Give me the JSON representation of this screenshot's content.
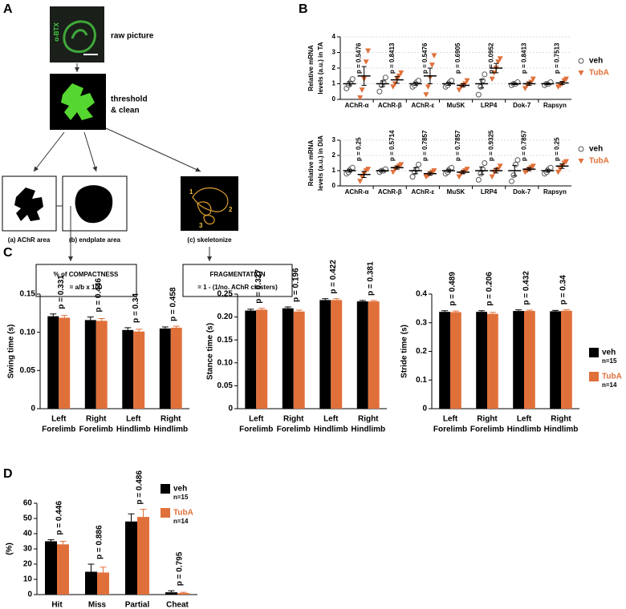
{
  "panel_labels": [
    "A",
    "B",
    "C",
    "D"
  ],
  "diagram": {
    "stain_label": "α-BTX",
    "raw_label": "raw picture",
    "threshold_label": [
      "threshold",
      "& clean"
    ],
    "areas": [
      "(a) AChR area",
      "(b) endplate area",
      "(c) skeletonize"
    ],
    "cluster_numbers": [
      "1",
      "2",
      "3"
    ],
    "compactness": [
      "% of COMPACTNESS",
      "= a/b x 100"
    ],
    "fragmentation": [
      "FRAGMENTATION",
      "= 1 - (1/no. AChR clusters)"
    ]
  },
  "chart_data": [
    {
      "type": "dotplot",
      "ylabel": [
        "Relative mRNA",
        "levels (a.u.) in TA"
      ],
      "categories": [
        "AChR-α",
        "AChR-β",
        "AChR-ε",
        "MuSK",
        "LRP4",
        "Dok-7",
        "Rapsyn"
      ],
      "ylim": [
        0,
        4
      ],
      "yticks": [
        0,
        1,
        2,
        3,
        4
      ],
      "grid": true,
      "legend": "right",
      "annotations": [
        "p = 0.5476",
        "p = 0.8413",
        "p = 0.5476",
        "p = 0.6905",
        "p = 0.0952",
        "p = 0.8413",
        "p = 0.7513"
      ],
      "series": [
        {
          "name": "veh",
          "color": "#555555",
          "marker": "circle",
          "values": [
            1.0,
            1.0,
            1.0,
            1.0,
            1.0,
            1.0,
            1.0
          ],
          "errors": [
            0.13,
            0.18,
            0.1,
            0.1,
            0.27,
            0.05,
            0.05
          ],
          "points": [
            [
              0.7,
              0.9,
              1.1,
              1.3
            ],
            [
              0.5,
              0.9,
              1.1,
              1.4
            ],
            [
              0.8,
              0.9,
              1.1,
              1.2
            ],
            [
              0.8,
              0.9,
              1.1,
              1.2
            ],
            [
              0.3,
              0.8,
              1.2,
              1.6
            ],
            [
              0.9,
              1.0,
              1.0,
              1.1
            ],
            [
              0.9,
              1.0,
              1.0,
              1.1
            ]
          ]
        },
        {
          "name": "TubA",
          "color": "#e0703a",
          "marker": "triangle-down",
          "values": [
            1.5,
            1.25,
            1.5,
            0.9,
            2.0,
            1.0,
            1.05
          ],
          "errors": [
            0.6,
            0.22,
            0.5,
            0.1,
            0.3,
            0.1,
            0.1
          ],
          "points": [
            [
              0.1,
              0.6,
              1.3,
              2.4,
              3.1
            ],
            [
              0.8,
              1.0,
              1.3,
              1.5,
              1.7
            ],
            [
              0.3,
              0.8,
              1.4,
              2.2,
              2.8
            ],
            [
              0.6,
              0.8,
              0.9,
              1.0,
              1.2
            ],
            [
              1.3,
              1.7,
              2.0,
              2.4,
              2.6
            ],
            [
              0.7,
              0.9,
              1.0,
              1.1,
              1.3
            ],
            [
              0.8,
              0.9,
              1.0,
              1.2,
              1.3
            ]
          ]
        }
      ]
    },
    {
      "type": "dotplot",
      "ylabel": [
        "Relative mRNA",
        "levels (a.u.) in DIA"
      ],
      "categories": [
        "AChR-α",
        "AChR-β",
        "AChR-ε",
        "MuSK",
        "LRP4",
        "Dok-7",
        "Rapsyn"
      ],
      "ylim": [
        0,
        3
      ],
      "yticks": [
        0,
        1,
        2,
        3
      ],
      "grid": true,
      "legend": "right",
      "annotations": [
        "p = 0.25",
        "p = 0.5714",
        "p = 0.7857",
        "p = 0.7857",
        "p = 0.9325",
        "p = 0.7857",
        "p = 0.25"
      ],
      "series": [
        {
          "name": "veh",
          "color": "#555555",
          "marker": "circle",
          "values": [
            1.0,
            1.0,
            1.0,
            1.0,
            1.0,
            1.0,
            1.0
          ],
          "errors": [
            0.1,
            0.05,
            0.2,
            0.1,
            0.25,
            0.35,
            0.1
          ],
          "points": [
            [
              0.8,
              0.9,
              1.1,
              1.2
            ],
            [
              0.9,
              1.0,
              1.0,
              1.1
            ],
            [
              0.6,
              0.9,
              1.1,
              1.4
            ],
            [
              0.8,
              0.9,
              1.1,
              1.2
            ],
            [
              0.4,
              0.8,
              1.1,
              1.5
            ],
            [
              0.3,
              0.7,
              1.4,
              1.7
            ],
            [
              0.8,
              0.9,
              1.1,
              1.2
            ]
          ]
        },
        {
          "name": "TubA",
          "color": "#e0703a",
          "marker": "triangle-down",
          "values": [
            0.75,
            1.2,
            0.8,
            0.9,
            1.0,
            1.1,
            1.3
          ],
          "errors": [
            0.2,
            0.1,
            0.1,
            0.1,
            0.15,
            0.1,
            0.15
          ],
          "points": [
            [
              0.3,
              0.6,
              0.8,
              1.0,
              1.1
            ],
            [
              0.9,
              1.1,
              1.2,
              1.3,
              1.4
            ],
            [
              0.6,
              0.7,
              0.8,
              0.9,
              1.0
            ],
            [
              0.6,
              0.8,
              0.9,
              1.0,
              1.1
            ],
            [
              0.6,
              0.9,
              1.0,
              1.1,
              1.3
            ],
            [
              0.9,
              1.0,
              1.1,
              1.2,
              1.3
            ],
            [
              0.9,
              1.1,
              1.3,
              1.5,
              1.6
            ]
          ]
        }
      ]
    },
    {
      "type": "bar",
      "ylabel": [
        "Swing time (s)"
      ],
      "categories": [
        [
          "Left",
          "Forelimb"
        ],
        [
          "Right",
          "Forelimb"
        ],
        [
          "Left",
          "Hindlimb"
        ],
        [
          "Right",
          "Hindlimb"
        ]
      ],
      "ylim": [
        0,
        0.15
      ],
      "yticks": [
        0,
        0.05,
        {
          "value": 0.1,
          "label": "0.10"
        },
        0.15
      ],
      "annotations": [
        "p = 0.331",
        "p = 0.446",
        "p = 0.34",
        "p = 0.458"
      ],
      "series": [
        {
          "color": "#000000",
          "values": [
            0.121,
            0.116,
            0.103,
            0.105
          ],
          "errors": [
            0.003,
            0.004,
            0.003,
            0.002
          ]
        },
        {
          "color": "#e0703a",
          "values": [
            0.119,
            0.115,
            0.101,
            0.106
          ],
          "errors": [
            0.003,
            0.003,
            0.003,
            0.002
          ]
        }
      ]
    },
    {
      "type": "bar",
      "ylabel": [
        "Stance time (s)"
      ],
      "categories": [
        [
          "Left",
          "Forelimb"
        ],
        [
          "Right",
          "Forelimb"
        ],
        [
          "Left",
          "Hindlimb"
        ],
        [
          "Right",
          "Hindlimb"
        ]
      ],
      "ylim": [
        0,
        0.25
      ],
      "yticks": [
        0,
        0.05,
        {
          "value": 0.1,
          "label": "0.10"
        },
        0.15,
        {
          "value": 0.2,
          "label": "0.20"
        },
        0.25
      ],
      "annotations": [
        "p = 0.327",
        "p = 0.196",
        "p = 0.422",
        "p = 0.381"
      ],
      "series": [
        {
          "color": "#000000",
          "values": [
            0.214,
            0.219,
            0.237,
            0.234
          ],
          "errors": [
            0.003,
            0.003,
            0.003,
            0.002
          ]
        },
        {
          "color": "#e0703a",
          "values": [
            0.216,
            0.212,
            0.237,
            0.234
          ],
          "errors": [
            0.003,
            0.003,
            0.003,
            0.002
          ]
        }
      ]
    },
    {
      "type": "bar",
      "ylabel": [
        "Stride time (s)"
      ],
      "categories": [
        [
          "Left",
          "Forelimb"
        ],
        [
          "Right",
          "Forelimb"
        ],
        [
          "Left",
          "Hindlimb"
        ],
        [
          "Right",
          "Hindlimb"
        ]
      ],
      "ylim": [
        0,
        0.4
      ],
      "yticks": [
        0,
        0.1,
        0.2,
        0.3,
        0.4
      ],
      "legend": "right",
      "annotations": [
        "p = 0.489",
        "p = 0.206",
        "p = 0.432",
        "p = 0.34"
      ],
      "series": [
        {
          "name": "veh",
          "note": "n=15",
          "color": "#000000",
          "values": [
            0.338,
            0.338,
            0.341,
            0.34
          ],
          "errors": [
            0.004,
            0.004,
            0.004,
            0.003
          ]
        },
        {
          "name": "TubA",
          "note": "n=14",
          "color": "#e0703a",
          "values": [
            0.337,
            0.331,
            0.341,
            0.342
          ],
          "errors": [
            0.004,
            0.005,
            0.003,
            0.004
          ]
        }
      ]
    },
    {
      "type": "bar",
      "ylabel": [
        "(%)"
      ],
      "categories": [
        [
          "Hit"
        ],
        [
          "Miss"
        ],
        [
          "Partial"
        ],
        [
          "Cheat"
        ]
      ],
      "ylim": [
        0,
        60
      ],
      "yticks": [
        0,
        10,
        20,
        30,
        40,
        50,
        60
      ],
      "legend": "upper right",
      "annotations": [
        "p = 0.446",
        "p = 0.886",
        "p = 0.486",
        "p = 0.795"
      ],
      "series": [
        {
          "name": "veh",
          "note": "n=15",
          "color": "#000000",
          "values": [
            35,
            15,
            48,
            1.5
          ],
          "errors": [
            1,
            5,
            5,
            1
          ]
        },
        {
          "name": "TubA",
          "note": "n=14",
          "color": "#e0703a",
          "values": [
            33,
            14.5,
            51,
            1
          ],
          "errors": [
            2,
            3.5,
            5,
            0.5
          ]
        }
      ]
    }
  ]
}
